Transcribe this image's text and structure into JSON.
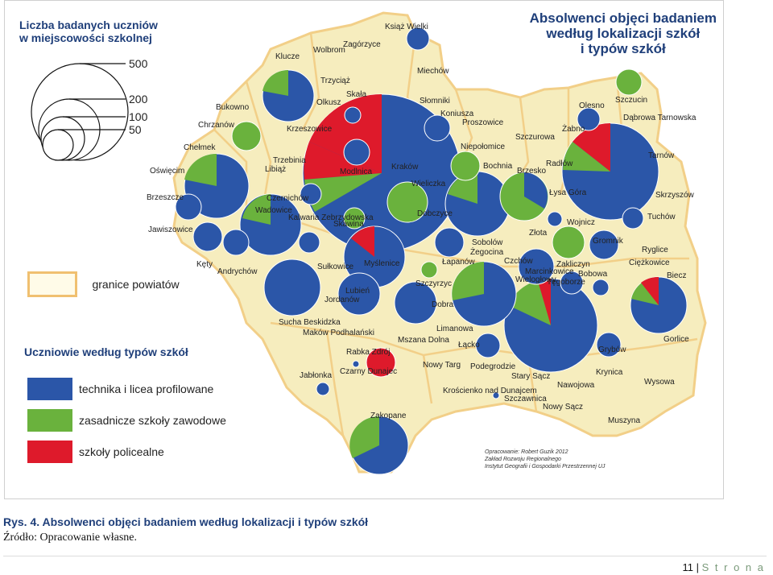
{
  "map_title": [
    "Absolwenci objęci badaniem",
    "według lokalizacji szkół",
    "i typów szkół"
  ],
  "size_legend": {
    "title": [
      "Liczba badanych uczniów",
      "w miejscowości szkolnej"
    ],
    "values": [
      "500",
      "200",
      "100",
      "50"
    ]
  },
  "boundary_legend": {
    "label": "granice powiatów"
  },
  "type_legend": {
    "title": "Uczniowie według typów szkół",
    "items": [
      {
        "label": "technika i licea profilowane",
        "color": "#2b56a8"
      },
      {
        "label": "zasadnicze szkoły zawodowe",
        "color": "#6ab23d"
      },
      {
        "label": "szkoły policealne",
        "color": "#de1a2b"
      }
    ]
  },
  "place_names": [
    "Klucze",
    "Wolbrom",
    "Zagórzyce",
    "Książ Wielki",
    "Miechów",
    "Trzyciąż",
    "Skała",
    "Olkusz",
    "Bukowno",
    "Słomniki",
    "Koniusza",
    "Proszowice",
    "Chrzanów",
    "Krzeszowice",
    "Chełmek",
    "Trzebinia",
    "Libiąż",
    "Oświęcim",
    "Modlnica",
    "Kraków",
    "Wieliczka",
    "Niepołomice",
    "Szczurowa",
    "Bochnia",
    "Brzesko",
    "Żabno",
    "Olesno",
    "Szczucin",
    "Dąbrowa Tarnowska",
    "Tarnów",
    "Radłów",
    "Łysa Góra",
    "Skrzyszów",
    "Tuchów",
    "Wojnicz",
    "Złota",
    "Brzeszcze",
    "Czernichów",
    "Wadowice",
    "Kalwaria Zebrzydowska",
    "Skawina",
    "Dobczyce",
    "Sobolów",
    "Żegocina",
    "Łapanów",
    "Czchów",
    "Zakliczyn",
    "Marcinkowice",
    "Bobowa",
    "Gromnik",
    "Ryglice",
    "Ciężkowice",
    "Biecz",
    "Jawiszowice",
    "Kęty",
    "Andrychów",
    "Sułkowice",
    "Myślenice",
    "Szczyrzyc",
    "Wielogłowy",
    "Tęgoborze",
    "Lubień",
    "Jordanów",
    "Dobra",
    "Sucha Beskidzka",
    "Maków Podhalański",
    "Mszana Dolna",
    "Limanowa",
    "Łącko",
    "Gorlice",
    "Rabka Zdrój",
    "Grybów",
    "Nowy Targ",
    "Podegrodzie",
    "Krynica",
    "Stary Sącz",
    "Nawojowa",
    "Wysowa",
    "Jabłonka",
    "Czarny Dunajec",
    "Krościenko nad Dunajcem",
    "Szczawnica",
    "Nowy Sącz",
    "Zakopane",
    "Muszyna"
  ],
  "credits": [
    "Opracowanie: Robert Guzik 2012",
    "Zakład Rozwoju Regionalnego",
    "Instytut Geografii i Gospodarki Przestrzennej UJ"
  ],
  "caption": "Rys. 4. Absolwenci objęci badaniem według lokalizacji i typów szkół",
  "source": "Źródło: Opracowanie własne.",
  "page": {
    "number": "11",
    "word": "S t r o n a"
  },
  "colors": {
    "technika": "#2b56a8",
    "zasadnicze": "#6ab23d",
    "policealne": "#de1a2b",
    "region_fill": "#f6edbe",
    "boundary": "#f2cf88"
  },
  "symbols": [
    {
      "place": "Kraków",
      "pupils": 1600,
      "shares": [
        0.72,
        0.08,
        0.2
      ]
    },
    {
      "place": "Tarnów",
      "pupils": 800,
      "shares": [
        0.8,
        0.1,
        0.1
      ]
    },
    {
      "place": "Nowy Sącz",
      "pupils": 700,
      "shares": [
        0.84,
        0.12,
        0.04
      ]
    },
    {
      "place": "Zakopane",
      "pupils": 200,
      "shares": [
        0.65,
        0.35,
        0
      ]
    },
    {
      "place": "Gorlice",
      "pupils": 150,
      "shares": [
        0.7,
        0.22,
        0.08
      ]
    },
    {
      "place": "Oświęcim",
      "pupils": 200,
      "shares": [
        0.75,
        0.2,
        0.05
      ]
    },
    {
      "place": "Olkusz",
      "pupils": 150,
      "shares": [
        0.8,
        0.2,
        0
      ]
    },
    {
      "place": "Bochnia",
      "pupils": 180,
      "shares": [
        0.78,
        0.22,
        0
      ]
    },
    {
      "place": "Wadowice",
      "pupils": 180,
      "shares": [
        0.8,
        0.2,
        0
      ]
    },
    {
      "place": "Myślenice",
      "pupils": 170,
      "shares": [
        0.82,
        0.18,
        0
      ]
    },
    {
      "place": "Limanowa",
      "pupils": 200,
      "shares": [
        0.55,
        0.45,
        0
      ]
    },
    {
      "place": "Brzesko",
      "pupils": 120,
      "shares": [
        0.72,
        0.28,
        0
      ]
    }
  ]
}
